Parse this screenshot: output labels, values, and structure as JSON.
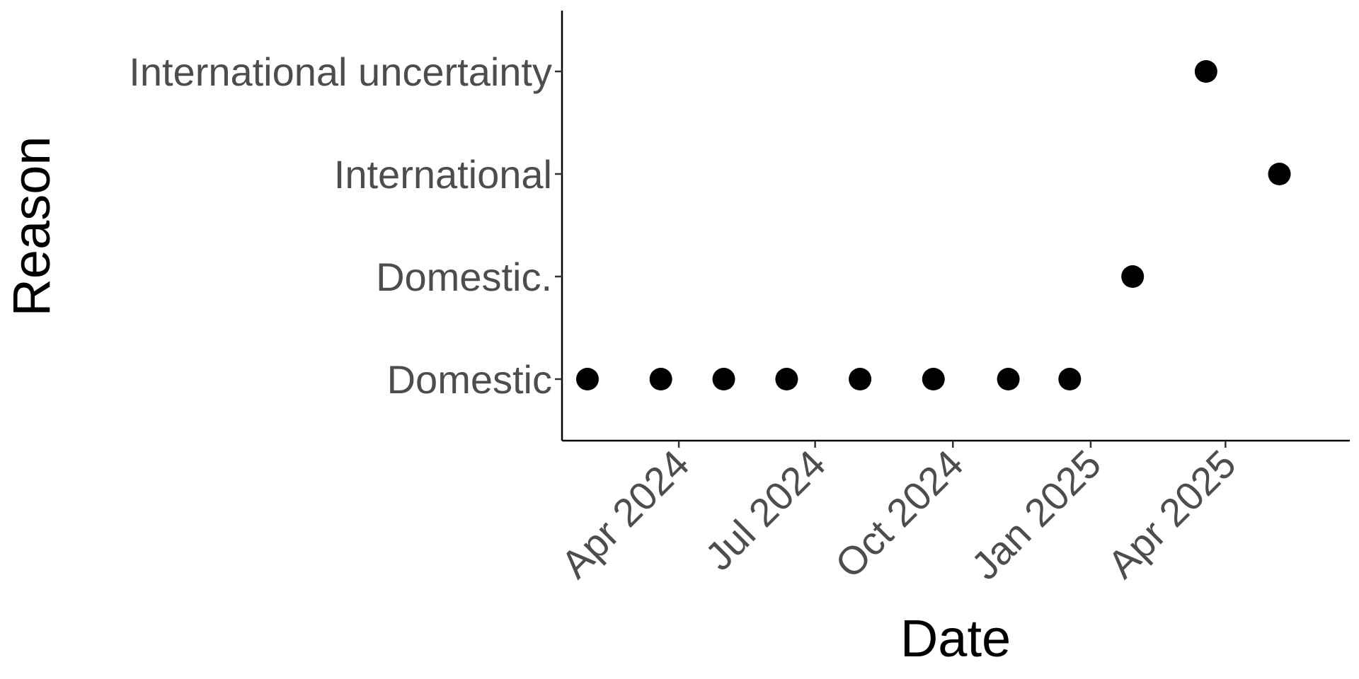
{
  "chart_data": {
    "type": "scatter",
    "title": "",
    "xlabel": "Date",
    "ylabel": "Reason",
    "x_axis_type": "date",
    "y_axis_type": "categorical",
    "categories": [
      "Domestic",
      "Domestic.",
      "International",
      "International uncertainty"
    ],
    "xlim": [
      "2024-01-14",
      "2025-06-23"
    ],
    "xticks": [
      {
        "date": "2024-04-01",
        "label": "Apr 2024"
      },
      {
        "date": "2024-07-01",
        "label": "Jul 2024"
      },
      {
        "date": "2024-10-01",
        "label": "Oct 2024"
      },
      {
        "date": "2025-01-01",
        "label": "Jan 2025"
      },
      {
        "date": "2025-04-01",
        "label": "Apr 2025"
      }
    ],
    "grid": false,
    "legend": "none",
    "marker_color": "#000000",
    "points": [
      {
        "x": "2024-01-31",
        "y": "Domestic"
      },
      {
        "x": "2024-03-20",
        "y": "Domestic"
      },
      {
        "x": "2024-05-01",
        "y": "Domestic"
      },
      {
        "x": "2024-06-12",
        "y": "Domestic"
      },
      {
        "x": "2024-07-31",
        "y": "Domestic"
      },
      {
        "x": "2024-09-18",
        "y": "Domestic"
      },
      {
        "x": "2024-11-07",
        "y": "Domestic"
      },
      {
        "x": "2024-12-18",
        "y": "Domestic"
      },
      {
        "x": "2025-01-29",
        "y": "Domestic."
      },
      {
        "x": "2025-03-19",
        "y": "International uncertainty"
      },
      {
        "x": "2025-05-07",
        "y": "International"
      }
    ]
  }
}
